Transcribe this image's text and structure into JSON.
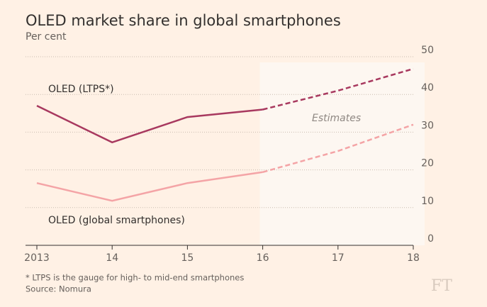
{
  "chart_data": {
    "type": "line",
    "title": "OLED market share in global smartphones",
    "subtitle": "Per cent",
    "categories": [
      "2013",
      "14",
      "15",
      "16",
      "17",
      "18"
    ],
    "series": [
      {
        "name": "OLED (LTPS*)",
        "color": "#a8395f",
        "values": [
          37,
          27.3,
          34,
          36,
          41,
          46.8
        ]
      },
      {
        "name": "OLED (global smartphones)",
        "color": "#f4a4a6",
        "values": [
          16.5,
          11.8,
          16.5,
          19.4,
          25,
          32
        ]
      }
    ],
    "estimate_start_index": 3,
    "annotation": "Estimates",
    "ylim": [
      0,
      50
    ],
    "yticks": [
      0,
      10,
      20,
      30,
      40,
      50
    ],
    "grid": true,
    "footnote": "* LTPS is the gauge for high- to mid-end smartphones",
    "source": "Source: Nomura",
    "logo": "FT"
  }
}
